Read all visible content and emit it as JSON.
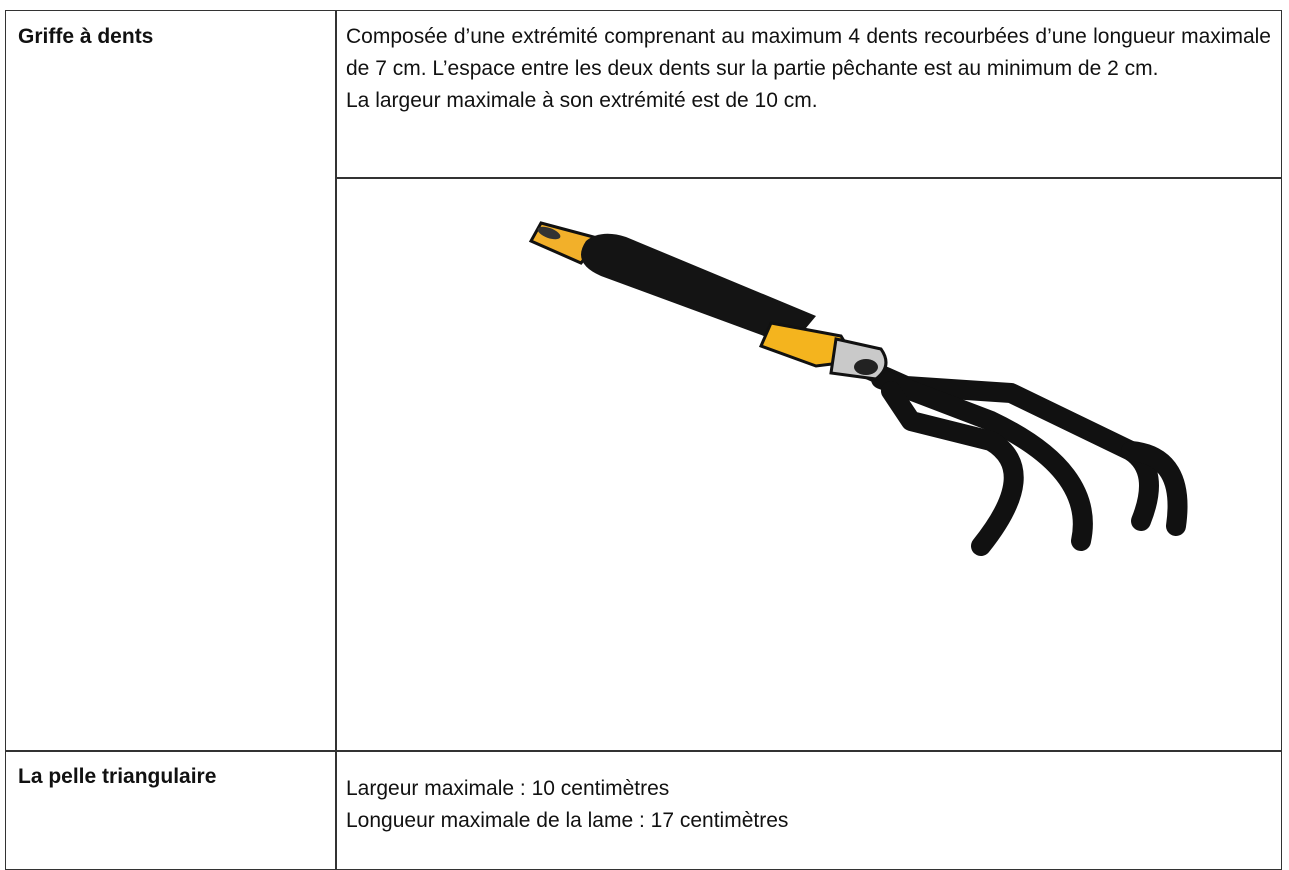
{
  "table": {
    "rows": [
      {
        "label": "Griffe à dents",
        "description": [
          "Composée d’une extrémité comprenant au maximum 4 dents recourbées d’une longueur maximale de 7 cm. L’espace entre les deux dents sur la partie pêchante est au minimum de 2 cm.",
          "La largeur maximale à son extrémité est de 10 cm."
        ]
      },
      {
        "label": "La pelle triangulaire",
        "description": [
          "Largeur maximale : 10 centimètres",
          "Longueur maximale de la lame : 17 centimètres"
        ]
      }
    ]
  }
}
